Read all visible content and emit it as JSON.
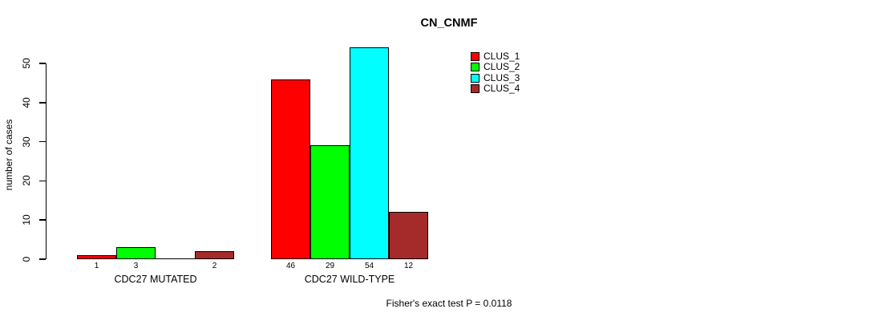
{
  "chart": {
    "title": "CN_CNMF",
    "y_axis": {
      "label": "number of cases"
    },
    "footnote": "Fisher's exact test P = 0.0118"
  },
  "legend": {
    "items": [
      {
        "label": "CLUS_1",
        "color": "#ff0000"
      },
      {
        "label": "CLUS_2",
        "color": "#00ff00"
      },
      {
        "label": "CLUS_3",
        "color": "#00ffff"
      },
      {
        "label": "CLUS_4",
        "color": "#a52a2a"
      }
    ]
  },
  "chart_data": {
    "type": "bar",
    "title": "CN_CNMF",
    "xlabel": "",
    "ylabel": "number of cases",
    "ylim": [
      0,
      50
    ],
    "yticks": [
      0,
      10,
      20,
      30,
      40,
      50
    ],
    "grid": false,
    "legend_position": "top-right",
    "categories": [
      "CDC27 MUTATED",
      "CDC27 WILD-TYPE"
    ],
    "series": [
      {
        "name": "CLUS_1",
        "color": "#ff0000",
        "values": [
          1,
          46
        ]
      },
      {
        "name": "CLUS_2",
        "color": "#00ff00",
        "values": [
          3,
          29
        ]
      },
      {
        "name": "CLUS_3",
        "color": "#00ffff",
        "values": [
          0,
          54
        ]
      },
      {
        "name": "CLUS_4",
        "color": "#a52a2a",
        "values": [
          2,
          12
        ]
      }
    ],
    "bar_value_labels": [
      [
        "1",
        "3",
        "",
        "2"
      ],
      [
        "46",
        "29",
        "54",
        "12"
      ]
    ],
    "annotation": "Fisher's exact test P = 0.0118"
  }
}
